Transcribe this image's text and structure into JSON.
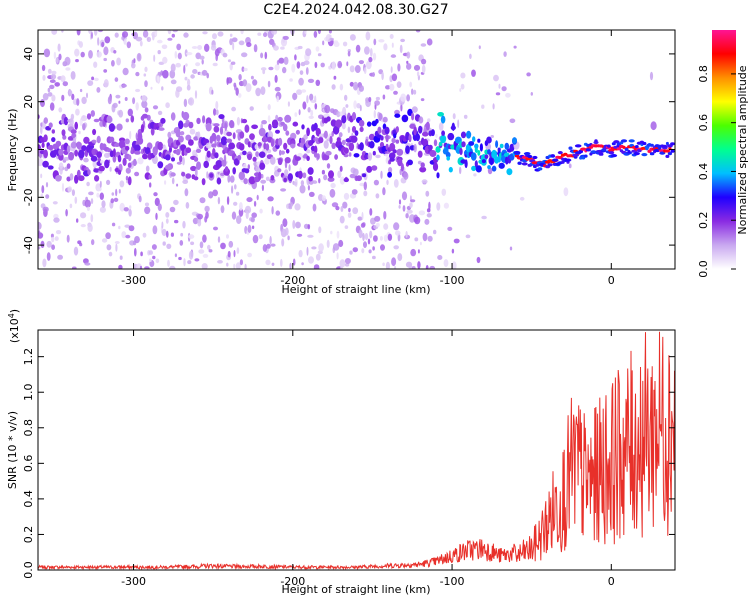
{
  "title": "C2E4.2024.042.08.30.G27",
  "chart_data": [
    {
      "type": "heatmap",
      "xlabel": "Height of straight line (km)",
      "ylabel": "Frequency (Hz)",
      "xlim": [
        -360,
        40
      ],
      "ylim": [
        -50,
        50
      ],
      "x_ticks": [
        -300,
        -200,
        -100,
        0
      ],
      "y_ticks": [
        -40,
        -20,
        0,
        20,
        40
      ],
      "colorbar": {
        "label": "Normalized spectral amplitude",
        "range": [
          0,
          1
        ],
        "ticks": [
          "0.0",
          "0.2",
          "0.4",
          "0.6",
          "0.8"
        ],
        "colors": [
          "#ffffff",
          "#c9a8f0",
          "#8a2be2",
          "#1f00ff",
          "#00bfff",
          "#00ff90",
          "#4cff00",
          "#ffff00",
          "#ff9000",
          "#ff0000",
          "#ff1493"
        ]
      },
      "ridge": [
        {
          "x": -360,
          "y": 0
        },
        {
          "x": -300,
          "y": 0
        },
        {
          "x": -200,
          "y": 0
        },
        {
          "x": -140,
          "y": 1
        },
        {
          "x": -120,
          "y": 3
        },
        {
          "x": -100,
          "y": 3
        },
        {
          "x": -90,
          "y": 0
        },
        {
          "x": -80,
          "y": -3
        },
        {
          "x": -70,
          "y": -3
        },
        {
          "x": -60,
          "y": -3
        },
        {
          "x": -55,
          "y": -4
        },
        {
          "x": -45,
          "y": -6
        },
        {
          "x": -40,
          "y": -6
        },
        {
          "x": -30,
          "y": -3
        },
        {
          "x": -20,
          "y": -1
        },
        {
          "x": -10,
          "y": 1
        },
        {
          "x": 0,
          "y": 0
        },
        {
          "x": 10,
          "y": 1
        },
        {
          "x": 20,
          "y": 0
        },
        {
          "x": 40,
          "y": 0
        }
      ]
    },
    {
      "type": "line",
      "xlabel": "Height of straight line (km)",
      "ylabel": "SNR (10 * v/v)",
      "multiplier": "(x10",
      "multiplier_exp": "4",
      "multiplier_close": ")",
      "xlim": [
        -360,
        40
      ],
      "ylim": [
        0,
        1.35
      ],
      "x_ticks": [
        -300,
        -200,
        -100,
        0
      ],
      "y_ticks": [
        0.0,
        0.2,
        0.4,
        0.6,
        0.8,
        1.0,
        1.2
      ],
      "color": "#e8302a",
      "series": [
        {
          "x": [
            -360,
            -340,
            -320,
            -300,
            -280,
            -260,
            -250,
            -240,
            -220,
            -200,
            -180,
            -160,
            -150,
            -140,
            -130,
            -120,
            -110,
            -100,
            -90,
            -80,
            -75,
            -70,
            -60,
            -50,
            -45,
            -40,
            -35,
            -30,
            -25,
            -22,
            -20,
            -15,
            -10,
            -5,
            0,
            5,
            10,
            15,
            20,
            25,
            30,
            35,
            40
          ],
          "y": [
            0.02,
            0.02,
            0.02,
            0.02,
            0.02,
            0.025,
            0.03,
            0.025,
            0.025,
            0.02,
            0.02,
            0.02,
            0.025,
            0.03,
            0.035,
            0.04,
            0.06,
            0.1,
            0.14,
            0.15,
            0.13,
            0.1,
            0.12,
            0.18,
            0.28,
            0.4,
            0.55,
            0.65,
            0.85,
            0.9,
            0.85,
            0.75,
            0.8,
            0.9,
            0.95,
            1.0,
            1.05,
            1.1,
            1.15,
            1.2,
            1.25,
            1.28,
            1.3
          ]
        }
      ]
    }
  ]
}
